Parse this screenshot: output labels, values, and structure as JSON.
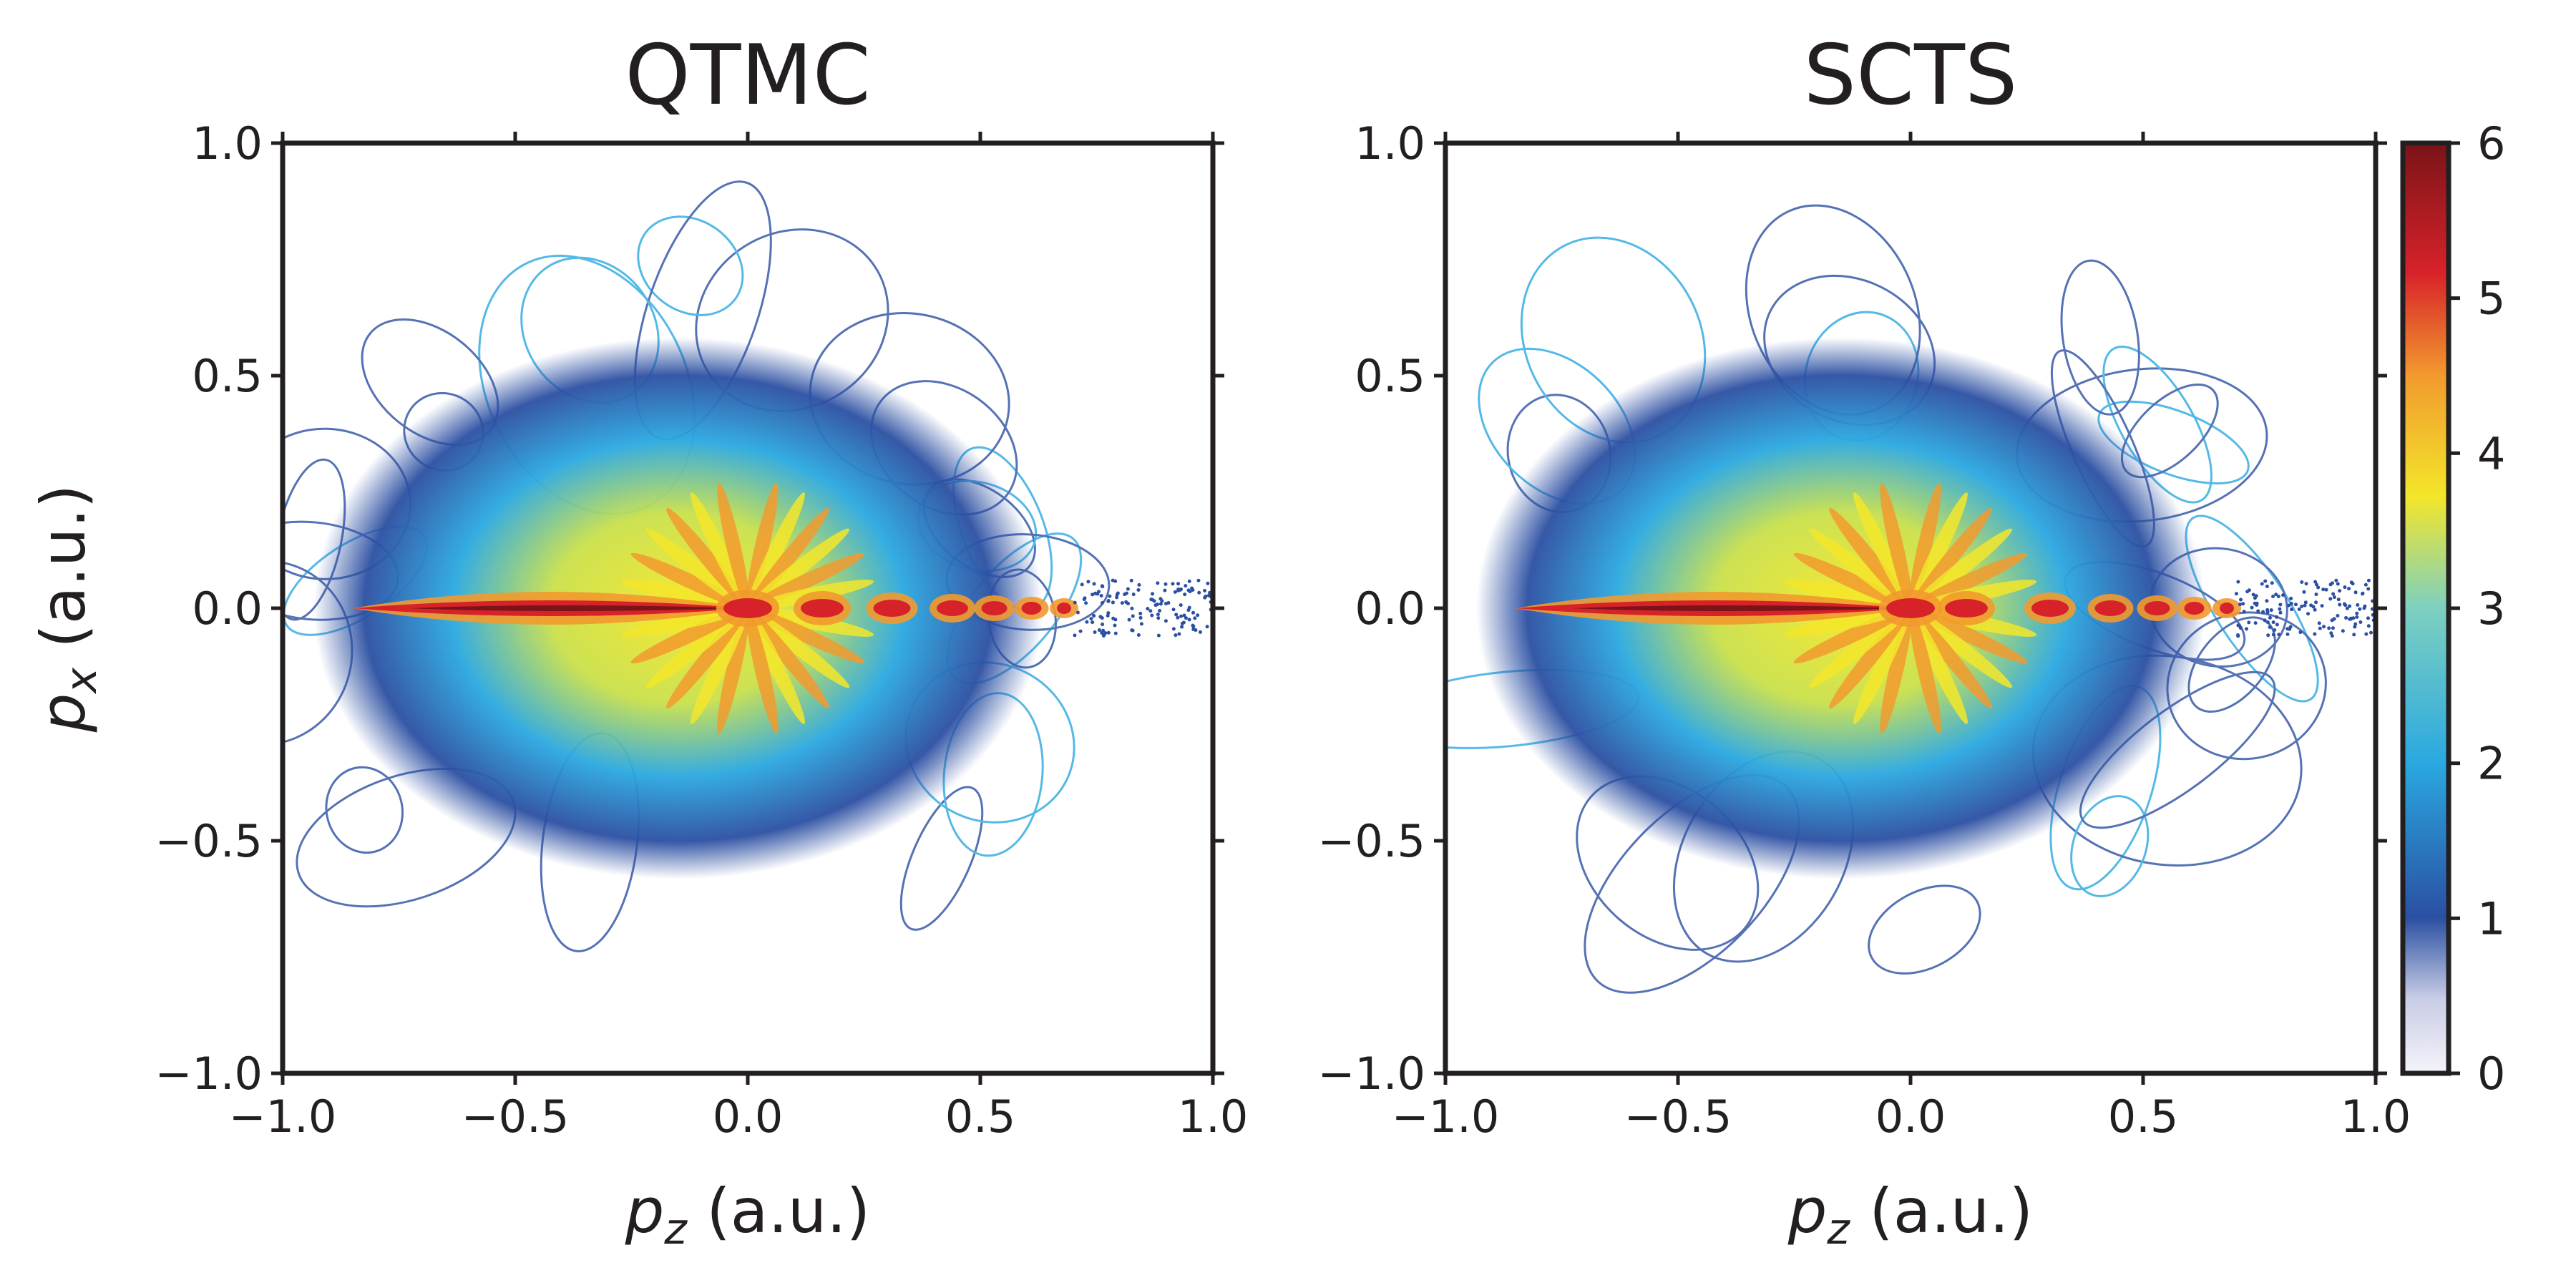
{
  "chart_data": [
    {
      "type": "heatmap",
      "title": "QTMC",
      "xlabel": "p_z (a.u.)",
      "ylabel": "p_x (a.u.)",
      "xlim": [
        -1.0,
        1.0
      ],
      "ylim": [
        -1.0,
        1.0
      ],
      "x_ticks": [
        "−1.0",
        "−0.5",
        "0.0",
        "0.5",
        "1.0"
      ],
      "y_ticks": [
        "1.0",
        "0.5",
        "0.0",
        "−0.5",
        "−1.0"
      ],
      "x_tick_values": [
        -1.0,
        -0.5,
        0.0,
        0.5,
        1.0
      ],
      "y_tick_values": [
        1.0,
        0.5,
        0.0,
        -0.5,
        -1.0
      ],
      "distribution": {
        "ellipse_center": [
          -0.15,
          0.0
        ],
        "ellipse_semi_axes": [
          0.7,
          0.52
        ],
        "central_ridge_pz_range": [
          -0.85,
          0.0
        ],
        "peak_level": 6,
        "ridge_blobs_pz": [
          0.0,
          0.16,
          0.31,
          0.44,
          0.53,
          0.61,
          0.68
        ],
        "sparse_tail_pz_range": [
          0.7,
          1.0
        ]
      }
    },
    {
      "type": "heatmap",
      "title": "SCTS",
      "xlabel": "p_z (a.u.)",
      "x_ticks": [
        "−1.0",
        "−0.5",
        "0.0",
        "0.5",
        "1.0"
      ],
      "y_ticks": [
        "1.0",
        "0.5",
        "0.0",
        "−0.5",
        "−1.0"
      ],
      "xlim": [
        -1.0,
        1.0
      ],
      "ylim": [
        -1.0,
        1.0
      ],
      "x_tick_values": [
        -1.0,
        -0.5,
        0.0,
        0.5,
        1.0
      ],
      "y_tick_values": [
        1.0,
        0.5,
        0.0,
        -0.5,
        -1.0
      ],
      "distribution": {
        "ellipse_center": [
          -0.15,
          0.0
        ],
        "ellipse_semi_axes": [
          0.7,
          0.52
        ],
        "central_ridge_pz_range": [
          -0.85,
          0.0
        ],
        "peak_level": 6,
        "ridge_blobs_pz": [
          0.0,
          0.12,
          0.3,
          0.43,
          0.53,
          0.61,
          0.68
        ],
        "sparse_tail_pz_range": [
          0.7,
          1.0
        ]
      }
    }
  ],
  "colorbar": {
    "range": [
      0,
      6
    ],
    "ticks": [
      "6",
      "5",
      "4",
      "3",
      "2",
      "1",
      "0"
    ],
    "tick_values": [
      6,
      5,
      4,
      3,
      2,
      1,
      0
    ],
    "colors": [
      "#f4f4fa",
      "#2b4fa2",
      "#2aa8e0",
      "#f3e62a",
      "#d8222a",
      "#7a1418"
    ]
  }
}
